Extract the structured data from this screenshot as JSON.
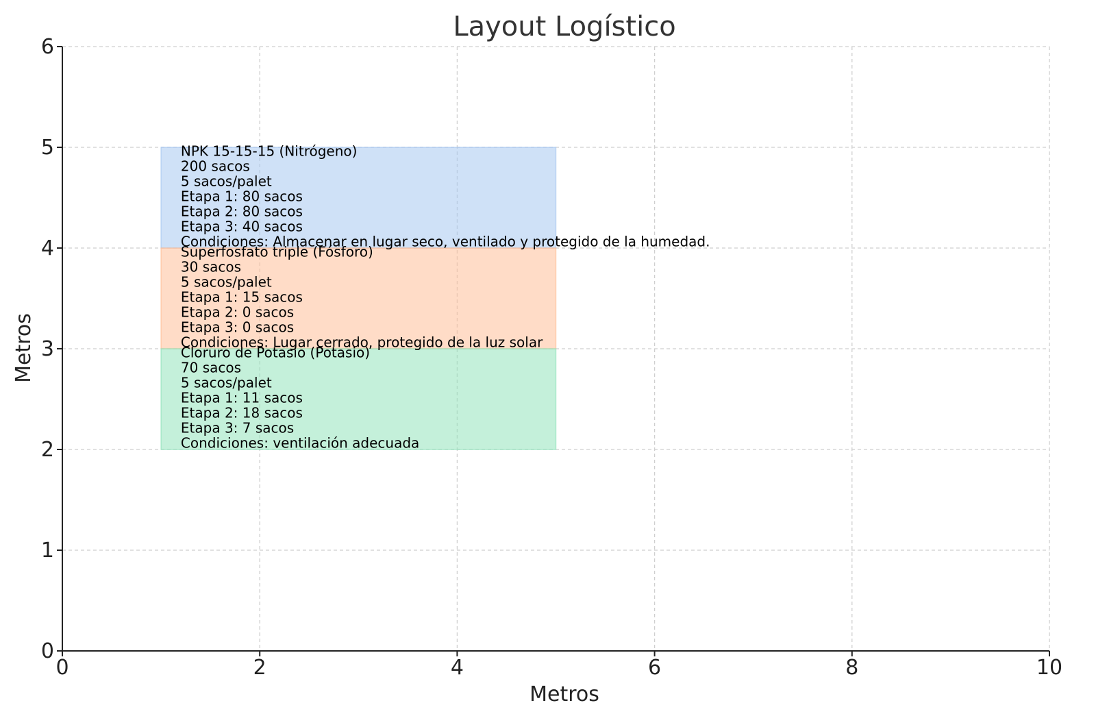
{
  "chart_data": {
    "type": "rectangles",
    "title": "Layout Logístico",
    "xlabel": "Metros",
    "ylabel": "Metros",
    "xlim": [
      0,
      10
    ],
    "ylim": [
      0,
      6
    ],
    "x_ticks": [
      "0",
      "2",
      "4",
      "6",
      "8",
      "10"
    ],
    "y_ticks": [
      "0",
      "1",
      "2",
      "3",
      "4",
      "5",
      "6"
    ],
    "grid": true,
    "blocks": [
      {
        "x": 1,
        "y": 4,
        "width": 4,
        "height": 1,
        "color": "#a8c8f0",
        "label_lines": [
          "NPK 15-15-15 (Nitrógeno)",
          "200 sacos",
          "5 sacos/palet",
          "Etapa 1: 80 sacos",
          "Etapa 2: 80 sacos",
          "Etapa 3: 40 sacos",
          "Condiciones: Almacenar en lugar seco, ventilado y protegido de la humedad."
        ]
      },
      {
        "x": 1,
        "y": 3,
        "width": 4,
        "height": 1,
        "color": "#ffbf99",
        "label_lines": [
          "Superfosfato triple (Fósforo)",
          "30 sacos",
          "5 sacos/palet",
          "Etapa 1: 15 sacos",
          "Etapa 2: 0 sacos",
          "Etapa 3: 0 sacos",
          "Condiciones: Lugar cerrado, protegido de la luz solar"
        ]
      },
      {
        "x": 1,
        "y": 2,
        "width": 4,
        "height": 1,
        "color": "#93e3bc",
        "label_lines": [
          "Cloruro de Potasio (Potasio)",
          "70 sacos",
          "5 sacos/palet",
          "Etapa 1: 11 sacos",
          "Etapa 2: 18 sacos",
          "Etapa 3: 7 sacos",
          "Condiciones: ventilación adecuada"
        ]
      }
    ]
  }
}
